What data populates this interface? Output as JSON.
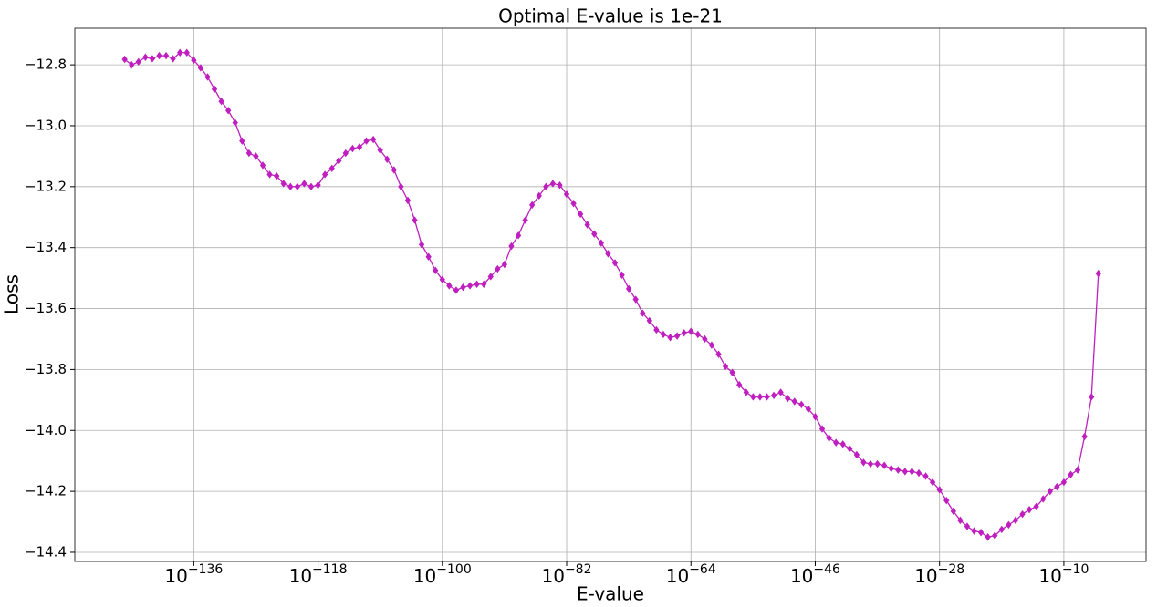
{
  "chart_data": {
    "type": "line",
    "title": "Optimal E-value is 1e-21",
    "x_label": "E-value",
    "y_label": "Loss",
    "xlog": true,
    "grid": true,
    "marker": "diamond",
    "x": [
      1e-146,
      1e-145,
      1e-144,
      1e-143,
      1e-142,
      1e-141,
      1e-140,
      1e-139,
      1e-138,
      1e-137,
      1e-136,
      1e-135,
      1e-134,
      1e-133,
      1e-132,
      1e-131,
      1e-130,
      1e-129,
      1e-128,
      1e-127,
      1e-126,
      1e-125,
      1e-124,
      1e-123,
      1e-122,
      1e-121,
      1e-120,
      1e-119,
      1e-118,
      1e-117,
      1e-116,
      1e-115,
      1e-114,
      1e-113,
      1e-112,
      1e-111,
      1e-110,
      1e-109,
      1e-108,
      1e-107,
      1e-106,
      1e-105,
      1e-104,
      1e-103,
      1e-102,
      1e-101,
      1e-100,
      1e-99,
      1e-98,
      1e-97,
      1e-96,
      1e-95,
      1e-94,
      1e-93,
      1e-92,
      1e-91,
      1e-90,
      1e-89,
      1e-88,
      1e-87,
      1e-86,
      1e-85,
      1e-84,
      1e-83,
      1e-82,
      1e-81,
      1e-80,
      1e-79,
      1e-78,
      1e-77,
      1e-76,
      1e-75,
      1e-74,
      1e-73,
      1e-72,
      1e-71,
      1e-70,
      1e-69,
      1e-68,
      1e-67,
      1e-66,
      1e-65,
      1e-64,
      1e-63,
      1e-62,
      1e-61,
      1e-60,
      1e-59,
      1e-58,
      1e-57,
      1e-56,
      1e-55,
      1e-54,
      1e-53,
      1e-52,
      1e-51,
      1e-50,
      1e-49,
      1e-48,
      1e-47,
      1e-46,
      1e-45,
      1e-44,
      1e-43,
      1e-42,
      1e-41,
      1e-40,
      1e-39,
      1e-38,
      1e-37,
      1e-36,
      1e-35,
      1e-34,
      1e-33,
      1e-32,
      1e-31,
      1e-30,
      1e-29,
      1e-28,
      1e-27,
      1e-26,
      1e-25,
      1e-24,
      1e-23,
      1e-22,
      1e-21,
      1e-20,
      1e-19,
      1e-18,
      1e-17,
      1e-16,
      1e-15,
      1e-14,
      1e-13,
      1e-12,
      1e-11,
      1e-10,
      1e-09,
      1e-08,
      1e-07,
      1e-06,
      1e-05
    ],
    "series": [
      {
        "color": "#bf1fbf",
        "values": [
          -12.782,
          -12.8,
          -12.79,
          -12.775,
          -12.78,
          -12.77,
          -12.77,
          -12.78,
          -12.76,
          -12.76,
          -12.785,
          -12.81,
          -12.84,
          -12.88,
          -12.92,
          -12.95,
          -12.99,
          -13.05,
          -13.09,
          -13.1,
          -13.13,
          -13.16,
          -13.165,
          -13.19,
          -13.2,
          -13.2,
          -13.19,
          -13.2,
          -13.195,
          -13.16,
          -13.14,
          -13.115,
          -13.09,
          -13.075,
          -13.07,
          -13.05,
          -13.045,
          -13.08,
          -13.11,
          -13.145,
          -13.2,
          -13.245,
          -13.31,
          -13.39,
          -13.43,
          -13.475,
          -13.505,
          -13.525,
          -13.54,
          -13.53,
          -13.525,
          -13.52,
          -13.52,
          -13.495,
          -13.47,
          -13.455,
          -13.395,
          -13.36,
          -13.31,
          -13.26,
          -13.23,
          -13.2,
          -13.19,
          -13.195,
          -13.225,
          -13.255,
          -13.29,
          -13.325,
          -13.355,
          -13.385,
          -13.42,
          -13.45,
          -13.49,
          -13.535,
          -13.57,
          -13.615,
          -13.64,
          -13.67,
          -13.685,
          -13.695,
          -13.69,
          -13.68,
          -13.675,
          -13.685,
          -13.7,
          -13.72,
          -13.75,
          -13.79,
          -13.81,
          -13.85,
          -13.875,
          -13.89,
          -13.89,
          -13.89,
          -13.885,
          -13.875,
          -13.895,
          -13.905,
          -13.915,
          -13.93,
          -13.955,
          -13.995,
          -14.025,
          -14.04,
          -14.045,
          -14.06,
          -14.08,
          -14.105,
          -14.11,
          -14.11,
          -14.115,
          -14.125,
          -14.13,
          -14.135,
          -14.135,
          -14.14,
          -14.15,
          -14.17,
          -14.195,
          -14.23,
          -14.265,
          -14.295,
          -14.315,
          -14.33,
          -14.335,
          -14.35,
          -14.345,
          -14.325,
          -14.31,
          -14.295,
          -14.275,
          -14.26,
          -14.25,
          -14.225,
          -14.2,
          -14.185,
          -14.17,
          -14.145,
          -14.13,
          -14.02,
          -13.89,
          -13.485
        ]
      }
    ],
    "xlim": [
      6e-154,
      80
    ],
    "xticks": [
      {
        "value": 1e-136,
        "label": "10−136"
      },
      {
        "value": 1e-118,
        "label": "10−118"
      },
      {
        "value": 1e-100,
        "label": "10−100"
      },
      {
        "value": 1e-82,
        "label": "10−82"
      },
      {
        "value": 1e-64,
        "label": "10−64"
      },
      {
        "value": 1e-46,
        "label": "10−46"
      },
      {
        "value": 1e-28,
        "label": "10−28"
      },
      {
        "value": 1e-10,
        "label": "10−10"
      }
    ],
    "ylim": [
      -14.43,
      -12.68
    ],
    "yticks": [
      {
        "value": -12.8,
        "label": "−12.8"
      },
      {
        "value": -13.0,
        "label": "−13.0"
      },
      {
        "value": -13.2,
        "label": "−13.2"
      },
      {
        "value": -13.4,
        "label": "−13.4"
      },
      {
        "value": -13.6,
        "label": "−13.6"
      },
      {
        "value": -13.8,
        "label": "−13.8"
      },
      {
        "value": -14.0,
        "label": "−14.0"
      },
      {
        "value": -14.2,
        "label": "−14.2"
      },
      {
        "value": -14.4,
        "label": "−14.4"
      }
    ]
  }
}
